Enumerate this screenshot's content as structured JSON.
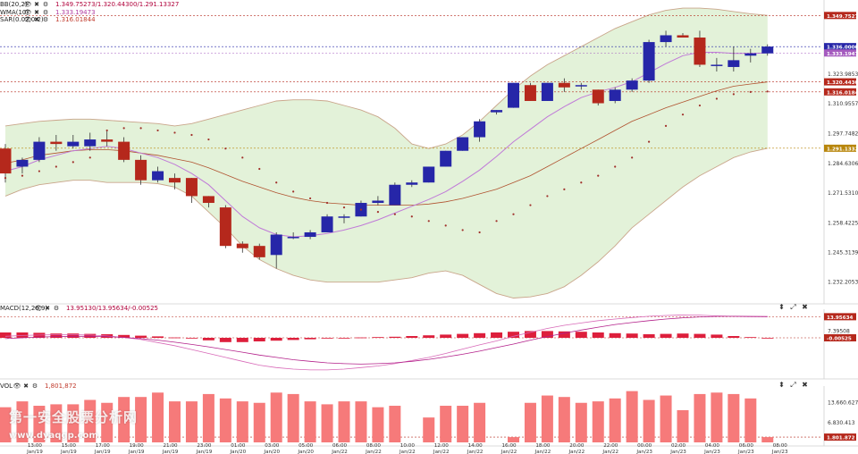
{
  "legend": {
    "main": [
      {
        "name": "BB(20,2)",
        "values": "1.349.75273/1.320.44300/1.291.13327",
        "cls": "bb"
      },
      {
        "name": "WMA(10)",
        "values": "1.333.19473",
        "cls": "wma"
      },
      {
        "name": "SAR(0.02,0.2)",
        "values": "1.316.01844",
        "cls": ""
      }
    ],
    "macd": {
      "name": "MACD(12,26,9)",
      "values": "13.95130/13.95634/-0.00525"
    },
    "vol": {
      "name": "VOL",
      "values": "1,801,872"
    }
  },
  "icons": {
    "eye": "👁",
    "close": "✖",
    "gear": "⚙",
    "up": "▲",
    "down": "▼",
    "expand": "⤢",
    "pin": "⬍"
  },
  "watermark": {
    "line1": "第一安全股票分析网",
    "line2": "www.dyaqgp.com"
  },
  "chart_data": {
    "type": "candlestick",
    "colors": {
      "up": "#2626a8",
      "down": "#b5281c",
      "bb_fill": "#e3f2d9",
      "bb_line": "#c9a58a",
      "wma": "#c07ad8",
      "macd_bar": "#dd1f3c",
      "vol_bar": "#f67a7a"
    },
    "x_ticks": [
      {
        "i": 1,
        "time": "13:00",
        "date": "Jan/19"
      },
      {
        "i": 3,
        "time": "15:00",
        "date": "Jan/19"
      },
      {
        "i": 5,
        "time": "17:00",
        "date": "Jan/19"
      },
      {
        "i": 7,
        "time": "19:00",
        "date": "Jan/19"
      },
      {
        "i": 9,
        "time": "21:00",
        "date": "Jan/19"
      },
      {
        "i": 11,
        "time": "23:00",
        "date": "Jan/19"
      },
      {
        "i": 13,
        "time": "01:00",
        "date": "Jan/20"
      },
      {
        "i": 15,
        "time": "03:00",
        "date": "Jan/20"
      },
      {
        "i": 17,
        "time": "05:00",
        "date": "Jan/20"
      },
      {
        "i": 19,
        "time": "06:00",
        "date": "Jan/22"
      },
      {
        "i": 21,
        "time": "08:00",
        "date": "Jan/22"
      },
      {
        "i": 23,
        "time": "10:00",
        "date": "Jan/22"
      },
      {
        "i": 25,
        "time": "12:00",
        "date": "Jan/22"
      },
      {
        "i": 27,
        "time": "14:00",
        "date": "Jan/22"
      },
      {
        "i": 29,
        "time": "16:00",
        "date": "Jan/22"
      },
      {
        "i": 31,
        "time": "18:00",
        "date": "Jan/22"
      },
      {
        "i": 33,
        "time": "20:00",
        "date": "Jan/22"
      },
      {
        "i": 35,
        "time": "22:00",
        "date": "Jan/22"
      },
      {
        "i": 37,
        "time": "00:00",
        "date": "Jan/23"
      },
      {
        "i": 39,
        "time": "02:00",
        "date": "Jan/23"
      },
      {
        "i": 41,
        "time": "04:00",
        "date": "Jan/23"
      },
      {
        "i": 43,
        "time": "06:00",
        "date": "Jan/23"
      },
      {
        "i": 45,
        "time": "08:00",
        "date": "Jan/23"
      }
    ],
    "price": {
      "ylim": [
        1224,
        1355
      ],
      "ticks": [
        1323.98536,
        1310.95579,
        1297.74823,
        1284.63066,
        1271.53109,
        1258.42252,
        1245.31395,
        1232.20539
      ],
      "tick_labels": [
        "1.323.98536",
        "1.310.95579",
        "1.297.74823",
        "1.284.63066",
        "1.271.53109",
        "1.258.42252",
        "1.245.31395",
        "1.232.20539"
      ],
      "markers": [
        {
          "value": 1349.75273,
          "label": "1.349.75273",
          "color": "#b5281c"
        },
        {
          "value": 1336.0,
          "label": "1.336.00000",
          "color": "#2626a8"
        },
        {
          "value": 1333.19473,
          "label": "1.333.19473",
          "color": "#a55bbf"
        },
        {
          "value": 1320.443,
          "label": "1.320.44300",
          "color": "#b5281c"
        },
        {
          "value": 1316.01844,
          "label": "1.316.01844",
          "color": "#b5281c"
        },
        {
          "value": 1291.13327,
          "label": "1.291.13327",
          "color": "#b8860b"
        }
      ],
      "candles": [
        {
          "o": 1291,
          "h": 1293,
          "c": 1280,
          "l": 1276
        },
        {
          "o": 1283,
          "h": 1287,
          "c": 1286,
          "l": 1280
        },
        {
          "o": 1286,
          "h": 1296,
          "c": 1294,
          "l": 1285
        },
        {
          "o": 1294,
          "h": 1297,
          "c": 1293,
          "l": 1290
        },
        {
          "o": 1292,
          "h": 1297,
          "c": 1294,
          "l": 1291
        },
        {
          "o": 1292,
          "h": 1298,
          "c": 1295,
          "l": 1290
        },
        {
          "o": 1295,
          "h": 1299,
          "c": 1294,
          "l": 1292
        },
        {
          "o": 1294,
          "h": 1296,
          "c": 1286,
          "l": 1285
        },
        {
          "o": 1286,
          "h": 1288,
          "c": 1277,
          "l": 1275
        },
        {
          "o": 1277,
          "h": 1283,
          "c": 1281,
          "l": 1276
        },
        {
          "o": 1278,
          "h": 1280,
          "c": 1276,
          "l": 1273
        },
        {
          "o": 1278,
          "h": 1278,
          "c": 1270,
          "l": 1267
        },
        {
          "o": 1270,
          "h": 1270,
          "c": 1267,
          "l": 1265
        },
        {
          "o": 1265,
          "h": 1266,
          "c": 1248,
          "l": 1247
        },
        {
          "o": 1249,
          "h": 1250,
          "c": 1247,
          "l": 1245
        },
        {
          "o": 1248,
          "h": 1249,
          "c": 1243,
          "l": 1242
        },
        {
          "o": 1244,
          "h": 1254,
          "c": 1253,
          "l": 1238
        },
        {
          "o": 1252,
          "h": 1254,
          "c": 1252,
          "l": 1251
        },
        {
          "o": 1252,
          "h": 1255,
          "c": 1254,
          "l": 1251
        },
        {
          "o": 1254,
          "h": 1262,
          "c": 1261,
          "l": 1254
        },
        {
          "o": 1261,
          "h": 1262,
          "c": 1261,
          "l": 1258
        },
        {
          "o": 1261,
          "h": 1268,
          "c": 1267,
          "l": 1261
        },
        {
          "o": 1267,
          "h": 1270,
          "c": 1268,
          "l": 1266
        },
        {
          "o": 1266,
          "h": 1276,
          "c": 1275,
          "l": 1266
        },
        {
          "o": 1275,
          "h": 1277,
          "c": 1276,
          "l": 1274
        },
        {
          "o": 1276,
          "h": 1283,
          "c": 1283,
          "l": 1276
        },
        {
          "o": 1283,
          "h": 1290,
          "c": 1290,
          "l": 1283
        },
        {
          "o": 1290,
          "h": 1296,
          "c": 1296,
          "l": 1290
        },
        {
          "o": 1296,
          "h": 1304,
          "c": 1303,
          "l": 1294
        },
        {
          "o": 1307,
          "h": 1308,
          "c": 1308,
          "l": 1306
        },
        {
          "o": 1309,
          "h": 1320,
          "c": 1320,
          "l": 1309
        },
        {
          "o": 1319,
          "h": 1320,
          "c": 1312,
          "l": 1312
        },
        {
          "o": 1312,
          "h": 1320,
          "c": 1320,
          "l": 1312
        },
        {
          "o": 1320,
          "h": 1322,
          "c": 1318,
          "l": 1316
        },
        {
          "o": 1319,
          "h": 1320,
          "c": 1319,
          "l": 1317
        },
        {
          "o": 1317,
          "h": 1317,
          "c": 1311,
          "l": 1310
        },
        {
          "o": 1312,
          "h": 1318,
          "c": 1317,
          "l": 1311
        },
        {
          "o": 1317,
          "h": 1322,
          "c": 1321,
          "l": 1316
        },
        {
          "o": 1321,
          "h": 1339,
          "c": 1338,
          "l": 1320
        },
        {
          "o": 1338,
          "h": 1343,
          "c": 1341,
          "l": 1336
        },
        {
          "o": 1341,
          "h": 1342,
          "c": 1340,
          "l": 1340
        },
        {
          "o": 1340,
          "h": 1343,
          "c": 1328,
          "l": 1327
        },
        {
          "o": 1328,
          "h": 1331,
          "c": 1328,
          "l": 1325
        },
        {
          "o": 1327,
          "h": 1336,
          "c": 1330,
          "l": 1325
        },
        {
          "o": 1332,
          "h": 1335,
          "c": 1333,
          "l": 1329
        },
        {
          "o": 1333,
          "h": 1337,
          "c": 1336,
          "l": 1332
        }
      ],
      "bb_upper": [
        1301,
        1302,
        1303,
        1303.5,
        1304,
        1304,
        1303.5,
        1303,
        1302.5,
        1302,
        1301,
        1302,
        1304,
        1306,
        1308,
        1310,
        1312,
        1312.5,
        1312.5,
        1312,
        1310,
        1308,
        1305,
        1300,
        1293,
        1291,
        1293,
        1297,
        1303,
        1310,
        1317,
        1323,
        1328,
        1332,
        1336,
        1340,
        1344,
        1347,
        1350,
        1352,
        1353,
        1353,
        1352.5,
        1351.5,
        1350.5,
        1349.8
      ],
      "bb_lower": [
        1270,
        1273,
        1275,
        1276,
        1277,
        1277,
        1276,
        1276,
        1276,
        1275.5,
        1274,
        1270,
        1263,
        1256,
        1248,
        1242,
        1238,
        1235,
        1233,
        1232,
        1232,
        1232,
        1232,
        1233,
        1234,
        1236,
        1237,
        1235,
        1231,
        1227,
        1225,
        1225.5,
        1227,
        1230,
        1235,
        1241,
        1248,
        1256,
        1262,
        1268,
        1274,
        1279,
        1283,
        1287,
        1289.5,
        1291.1
      ],
      "bb_mid": [
        1284.5,
        1286,
        1288,
        1289,
        1290,
        1290.5,
        1290.5,
        1290,
        1289,
        1288,
        1286.5,
        1285,
        1282.5,
        1279.5,
        1276.5,
        1274,
        1271.5,
        1269.5,
        1268,
        1267,
        1266.5,
        1266,
        1266,
        1266,
        1266,
        1266.5,
        1267.5,
        1269,
        1271,
        1273,
        1276,
        1279,
        1283,
        1287,
        1291,
        1295,
        1299,
        1303,
        1306,
        1309,
        1311.5,
        1314,
        1316.5,
        1318.5,
        1319.5,
        1320.4
      ],
      "wma": [
        1281,
        1283,
        1286,
        1288,
        1290,
        1291,
        1292,
        1291,
        1289,
        1287,
        1284,
        1280,
        1275,
        1268,
        1261,
        1256,
        1253,
        1252,
        1252.5,
        1253.5,
        1255,
        1257,
        1259.5,
        1262.5,
        1265.5,
        1268.5,
        1272,
        1276.5,
        1281.5,
        1287.5,
        1294,
        1299.5,
        1305,
        1309.5,
        1313.5,
        1316,
        1318,
        1320.5,
        1324.5,
        1328.5,
        1332,
        1333.5,
        1333.5,
        1333,
        1333,
        1333.2
      ],
      "sar": [
        1278,
        1279,
        1281,
        1283,
        1285,
        1287,
        1299,
        1300,
        1300,
        1299,
        1298,
        1297,
        1295,
        1291,
        1287,
        1282,
        1276,
        1272,
        1269,
        1267,
        1265,
        1264,
        1263,
        1262,
        1261,
        1259,
        1257,
        1255,
        1254,
        1259,
        1262,
        1266,
        1270,
        1273,
        1276,
        1279,
        1283,
        1287,
        1294,
        1301,
        1306,
        1310,
        1313,
        1315,
        1316,
        1316.2
      ]
    },
    "macd": {
      "ylim": [
        -2.4,
        1.6
      ],
      "ticks": [
        7.39508
      ],
      "tick_labels": [
        "7.39508"
      ],
      "markers": [
        {
          "value": 1.35,
          "label": "13.95634",
          "color": "#b5281c"
        },
        {
          "value": 0,
          "label": "-0.00525",
          "color": "#b5281c"
        }
      ],
      "hist": [
        0.15,
        0.15,
        0.14,
        0.12,
        0.12,
        0.11,
        0.1,
        0.08,
        0.06,
        0.04,
        0.01,
        -0.02,
        -0.07,
        -0.12,
        -0.12,
        -0.1,
        -0.08,
        -0.06,
        -0.04,
        -0.02,
        0,
        0.01,
        0.02,
        0.03,
        0.05,
        0.07,
        0.09,
        0.11,
        0.13,
        0.15,
        0.17,
        0.19,
        0.19,
        0.18,
        0.17,
        0.15,
        0.13,
        0.12,
        0.1,
        0.11,
        0.12,
        0.11,
        0.09,
        0.05,
        0.02,
        0
      ],
      "line1": [
        0.1,
        0.15,
        0.18,
        0.2,
        0.2,
        0.18,
        0.12,
        0.02,
        -0.1,
        -0.3,
        -0.5,
        -0.75,
        -1.0,
        -1.25,
        -1.5,
        -1.75,
        -1.9,
        -2.0,
        -2.05,
        -2.05,
        -2.0,
        -1.9,
        -1.8,
        -1.65,
        -1.45,
        -1.25,
        -1.0,
        -0.72,
        -0.45,
        -0.2,
        0.1,
        0.35,
        0.6,
        0.8,
        0.95,
        1.1,
        1.2,
        1.3,
        1.38,
        1.43,
        1.46,
        1.45,
        1.4,
        1.37,
        1.35,
        1.35
      ],
      "line2": [
        -0.05,
        0.0,
        0.05,
        0.08,
        0.1,
        0.1,
        0.08,
        0.02,
        -0.05,
        -0.15,
        -0.28,
        -0.42,
        -0.58,
        -0.75,
        -0.92,
        -1.1,
        -1.25,
        -1.4,
        -1.5,
        -1.6,
        -1.65,
        -1.68,
        -1.65,
        -1.6,
        -1.5,
        -1.38,
        -1.22,
        -1.05,
        -0.85,
        -0.62,
        -0.4,
        -0.15,
        0.08,
        0.3,
        0.5,
        0.68,
        0.85,
        0.98,
        1.1,
        1.2,
        1.28,
        1.34,
        1.37,
        1.38,
        1.37,
        1.36
      ]
    },
    "volume": {
      "ylim": [
        0,
        18000000
      ],
      "ticks": [
        13660627,
        6830413
      ],
      "tick_labels": [
        "13.660.627",
        "6.830.413"
      ],
      "markers": [
        {
          "value": 1801872,
          "label": "1.801.872",
          "color": "#b5281c"
        }
      ],
      "values": [
        12000000,
        14000000,
        12500000,
        13000000,
        13000000,
        14500000,
        13500000,
        15500000,
        15500000,
        17000000,
        14000000,
        14000000,
        16500000,
        15000000,
        14000000,
        13500000,
        17000000,
        16500000,
        14000000,
        13000000,
        14000000,
        14000000,
        12000000,
        12500000,
        0,
        8500000,
        12500000,
        12500000,
        13500000,
        0,
        1800000,
        13500000,
        16000000,
        15500000,
        13500000,
        14000000,
        15000000,
        17500000,
        14500000,
        16000000,
        11000000,
        16500000,
        17000000,
        16500000,
        15000000,
        1801872
      ]
    }
  }
}
